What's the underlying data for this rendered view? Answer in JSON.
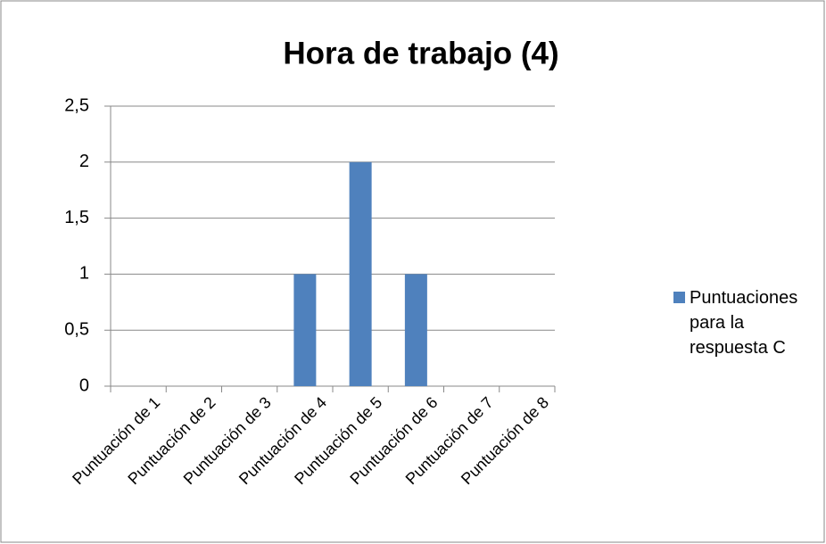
{
  "chart_data": {
    "type": "bar",
    "title": "Hora de trabajo (4)",
    "categories": [
      "Puntuación de 1",
      "Puntuación de 2",
      "Puntuación de 3",
      "Puntuación de 4",
      "Puntuación de 5",
      "Puntuación de 6",
      "Puntuación de 7",
      "Puntuación de 8"
    ],
    "series": [
      {
        "name": "Puntuaciones para la respuesta C",
        "color": "#4f81bd",
        "values": [
          0,
          0,
          0,
          1,
          2,
          1,
          0,
          0
        ]
      }
    ],
    "ylim": [
      0,
      2.5
    ],
    "yticks": [
      0,
      {
        "value": 0.5,
        "label": "0,5"
      },
      1,
      {
        "value": 1.5,
        "label": "1,5"
      },
      2,
      {
        "value": 2.5,
        "label": "2,5"
      }
    ],
    "grid": true,
    "legend": "right"
  }
}
